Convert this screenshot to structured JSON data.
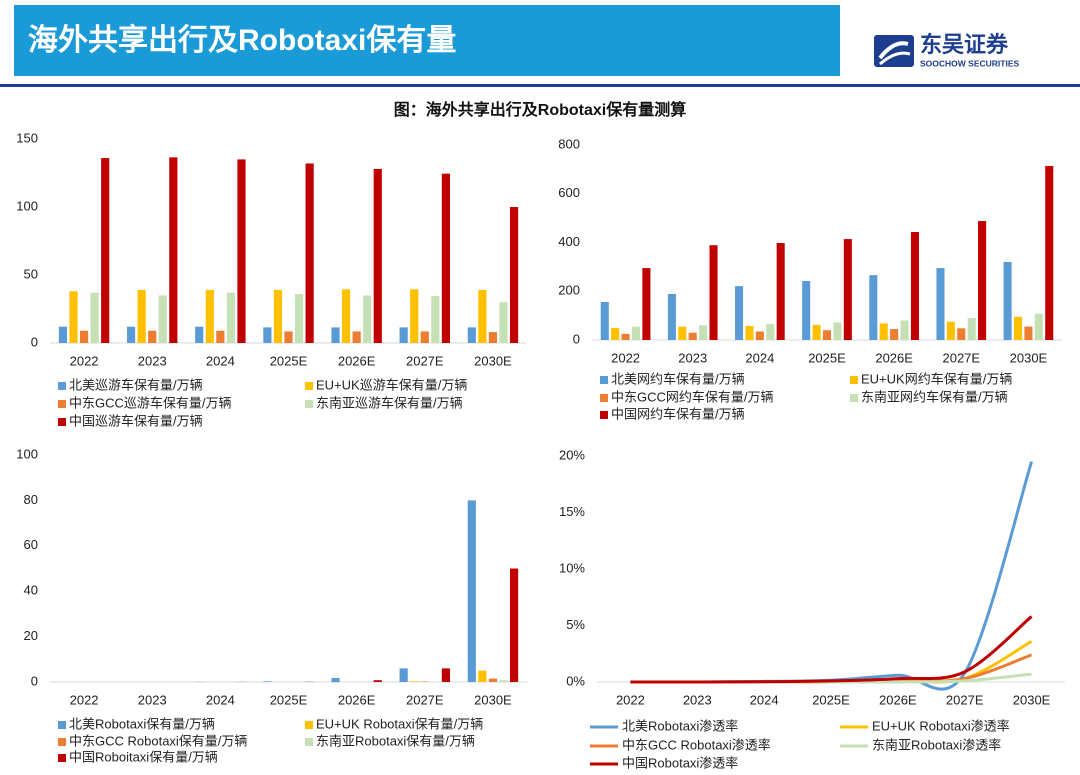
{
  "header": {
    "title": "海外共享出行及Robotaxi保有量",
    "logo_cn": "东吴证券",
    "logo_en": "SOOCHOW SECURITIES"
  },
  "caption": "图：海外共享出行及Robotaxi保有量测算",
  "chart_data": [
    {
      "type": "bar",
      "categories": [
        "2022",
        "2023",
        "2024",
        "2025E",
        "2026E",
        "2027E",
        "2030E"
      ],
      "ylim": [
        0,
        150
      ],
      "yticks": [
        0,
        50,
        100,
        150
      ],
      "grid": false,
      "series": [
        {
          "name": "北美巡游车保有量/万辆",
          "color": "#5b9bd5",
          "values": [
            12,
            12,
            12,
            11.5,
            11.5,
            11.5,
            11.5
          ]
        },
        {
          "name": "EU+UK巡游车保有量/万辆",
          "color": "#ffc000",
          "values": [
            38,
            39,
            39,
            39,
            39.5,
            39.5,
            39
          ]
        },
        {
          "name": "中东GCC巡游车保有量/万辆",
          "color": "#ed7d31",
          "values": [
            9,
            9,
            9,
            8.5,
            8.5,
            8.5,
            8
          ]
        },
        {
          "name": "东南亚巡游车保有量/万辆",
          "color": "#c5e0b4",
          "values": [
            37,
            35,
            37,
            36,
            35,
            34.5,
            30
          ]
        },
        {
          "name": "中国巡游车保有量/万辆",
          "color": "#c00000",
          "values": [
            136,
            136.5,
            135,
            132,
            128,
            124.5,
            100
          ]
        }
      ]
    },
    {
      "type": "bar",
      "categories": [
        "2022",
        "2023",
        "2024",
        "2025E",
        "2026E",
        "2027E",
        "2030E"
      ],
      "ylim": [
        0,
        800
      ],
      "yticks": [
        0,
        200,
        400,
        600,
        800
      ],
      "grid": false,
      "series": [
        {
          "name": "北美网约车保有量/万辆",
          "color": "#5b9bd5",
          "values": [
            156,
            189,
            221,
            242,
            266,
            295,
            320
          ]
        },
        {
          "name": "EU+UK网约车保有量/万辆",
          "color": "#ffc000",
          "values": [
            49,
            55,
            58,
            62,
            68,
            75,
            95
          ]
        },
        {
          "name": "中东GCC网约车保有量/万辆",
          "color": "#ed7d31",
          "values": [
            25,
            30,
            35,
            40,
            45,
            48,
            55
          ]
        },
        {
          "name": "东南亚网约车保有量/万辆",
          "color": "#c5e0b4",
          "values": [
            55,
            60,
            65,
            72,
            80,
            90,
            108
          ]
        },
        {
          "name": "中国网约车保有量/万辆",
          "color": "#c00000",
          "values": [
            295,
            389,
            398,
            414,
            443,
            488,
            714
          ]
        }
      ]
    },
    {
      "type": "bar",
      "categories": [
        "2022",
        "2023",
        "2024",
        "2025E",
        "2026E",
        "2027E",
        "2030E"
      ],
      "ylim": [
        0,
        100
      ],
      "yticks": [
        0,
        20,
        40,
        60,
        80,
        100
      ],
      "grid": false,
      "series": [
        {
          "name": "北美Robotaxi保有量/万辆",
          "color": "#5b9bd5",
          "values": [
            0,
            0,
            0.1,
            0.3,
            1.8,
            6,
            80
          ]
        },
        {
          "name": "EU+UK Robotaxi保有量/万辆",
          "color": "#ffc000",
          "values": [
            0,
            0,
            0,
            0,
            0,
            0.3,
            5
          ]
        },
        {
          "name": "中东GCC Robotaxi保有量/万辆",
          "color": "#ed7d31",
          "values": [
            0,
            0,
            0,
            0,
            0,
            0.2,
            1.5
          ]
        },
        {
          "name": "东南亚Robotaxi保有量/万辆",
          "color": "#c5e0b4",
          "values": [
            0,
            0,
            0,
            0,
            0,
            0.1,
            0.8
          ]
        },
        {
          "name": "中国Roboitaxi保有量/万辆",
          "color": "#c00000",
          "values": [
            0,
            0,
            0.05,
            0.1,
            0.8,
            6,
            50
          ]
        }
      ]
    },
    {
      "type": "line",
      "categories": [
        "2022",
        "2023",
        "2024",
        "2025E",
        "2026E",
        "2027E",
        "2030E"
      ],
      "ylim": [
        0,
        20
      ],
      "yticks": [
        {
          "value": 0,
          "label": "0%"
        },
        {
          "value": 5,
          "label": "5%"
        },
        {
          "value": 10,
          "label": "10%"
        },
        {
          "value": 15,
          "label": "15%"
        },
        {
          "value": 20,
          "label": "20%"
        }
      ],
      "grid": false,
      "smooth": true,
      "series": [
        {
          "name": "北美Robotaxi渗透率",
          "color": "#5b9bd5",
          "values": [
            0,
            0,
            0.05,
            0.15,
            0.6,
            0.8,
            19.5
          ]
        },
        {
          "name": "EU+UK Robotaxi渗透率",
          "color": "#ffc000",
          "values": [
            0,
            0,
            0,
            0,
            0.1,
            0.3,
            3.6
          ]
        },
        {
          "name": "中东GCC Robotaxi渗透率",
          "color": "#ed7d31",
          "values": [
            0,
            0,
            0,
            0,
            0.1,
            0.3,
            2.4
          ]
        },
        {
          "name": "东南亚Robotaxi渗透率",
          "color": "#c5e0b4",
          "values": [
            0,
            0,
            0,
            0,
            0,
            0.1,
            0.7
          ]
        },
        {
          "name": "中国Robotaxi渗透率",
          "color": "#c00000",
          "values": [
            0,
            0,
            0.02,
            0.1,
            0.3,
            0.9,
            5.8
          ]
        }
      ]
    }
  ]
}
